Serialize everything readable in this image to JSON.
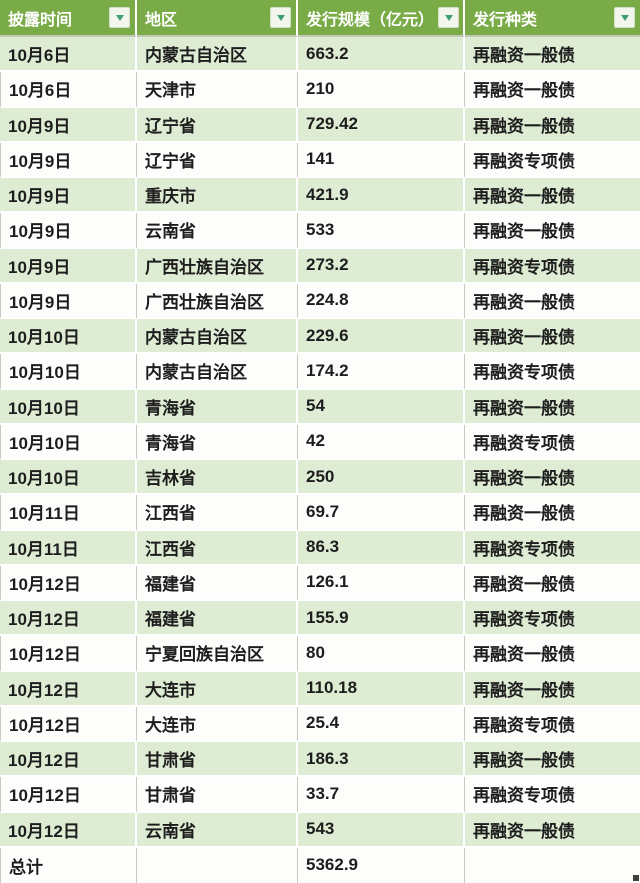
{
  "table": {
    "columns": [
      {
        "label": "披露时间"
      },
      {
        "label": "地区"
      },
      {
        "label": "发行规模（亿元）"
      },
      {
        "label": "发行种类"
      }
    ],
    "rows": [
      {
        "date": "10月6日",
        "region": "内蒙古自治区",
        "scale": "663.2",
        "type": "再融资一般债"
      },
      {
        "date": "10月6日",
        "region": "天津市",
        "scale": "210",
        "type": "再融资一般债"
      },
      {
        "date": "10月9日",
        "region": "辽宁省",
        "scale": "729.42",
        "type": "再融资一般债"
      },
      {
        "date": "10月9日",
        "region": "辽宁省",
        "scale": "141",
        "type": "再融资专项债"
      },
      {
        "date": "10月9日",
        "region": "重庆市",
        "scale": "421.9",
        "type": "再融资一般债"
      },
      {
        "date": "10月9日",
        "region": "云南省",
        "scale": "533",
        "type": "再融资一般债"
      },
      {
        "date": "10月9日",
        "region": "广西壮族自治区",
        "scale": "273.2",
        "type": "再融资专项债"
      },
      {
        "date": "10月9日",
        "region": "广西壮族自治区",
        "scale": "224.8",
        "type": "再融资一般债"
      },
      {
        "date": "10月10日",
        "region": "内蒙古自治区",
        "scale": "229.6",
        "type": "再融资一般债"
      },
      {
        "date": "10月10日",
        "region": "内蒙古自治区",
        "scale": "174.2",
        "type": "再融资专项债"
      },
      {
        "date": "10月10日",
        "region": "青海省",
        "scale": "54",
        "type": "再融资一般债"
      },
      {
        "date": "10月10日",
        "region": "青海省",
        "scale": "42",
        "type": "再融资专项债"
      },
      {
        "date": "10月10日",
        "region": "吉林省",
        "scale": "250",
        "type": "再融资一般债"
      },
      {
        "date": "10月11日",
        "region": "江西省",
        "scale": "69.7",
        "type": "再融资一般债"
      },
      {
        "date": "10月11日",
        "region": "江西省",
        "scale": "86.3",
        "type": "再融资专项债"
      },
      {
        "date": "10月12日",
        "region": "福建省",
        "scale": "126.1",
        "type": "再融资一般债"
      },
      {
        "date": "10月12日",
        "region": "福建省",
        "scale": "155.9",
        "type": "再融资专项债"
      },
      {
        "date": "10月12日",
        "region": "宁夏回族自治区",
        "scale": "80",
        "type": "再融资一般债"
      },
      {
        "date": "10月12日",
        "region": "大连市",
        "scale": "110.18",
        "type": "再融资一般债"
      },
      {
        "date": "10月12日",
        "region": "大连市",
        "scale": "25.4",
        "type": "再融资专项债"
      },
      {
        "date": "10月12日",
        "region": "甘肃省",
        "scale": "186.3",
        "type": "再融资一般债"
      },
      {
        "date": "10月12日",
        "region": "甘肃省",
        "scale": "33.7",
        "type": "再融资专项债"
      },
      {
        "date": "10月12日",
        "region": "云南省",
        "scale": "543",
        "type": "再融资一般债"
      }
    ],
    "total": {
      "label": "总计",
      "scale": "5362.9"
    }
  },
  "icons": {
    "filter_dropdown": "chevron-down"
  },
  "colors": {
    "header_bg": "#79ab47",
    "band_green": "#dfecd4",
    "row_white": "#fdfdfb",
    "grid_line": "#c7ccbd",
    "header_text": "#ffffff",
    "body_text": "#1d1d1d",
    "dropdown_bg": "#f3f6ec",
    "dropdown_arrow": "#3f9c7d"
  }
}
